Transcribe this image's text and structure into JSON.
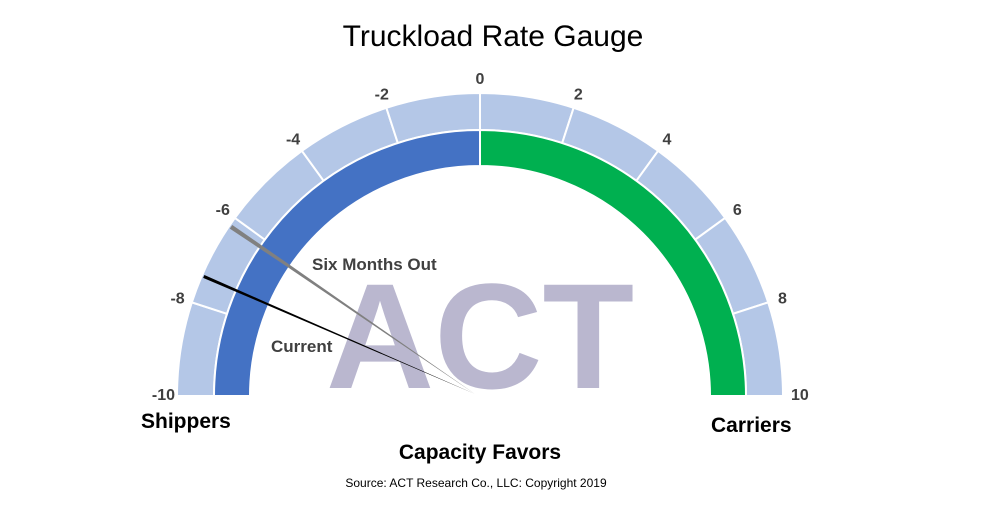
{
  "chart_data": {
    "type": "gauge",
    "title": "Truckload Rate Gauge",
    "range": [
      -10,
      10
    ],
    "ticks": [
      -10,
      -8,
      -6,
      -4,
      -2,
      0,
      2,
      4,
      6,
      8,
      10
    ],
    "tick_labels": [
      "-10",
      "-8",
      "-6",
      "-4",
      "-2",
      "0",
      "2",
      "4",
      "6",
      "8",
      "10"
    ],
    "left_label": "Shippers",
    "right_label": "Carriers",
    "axis_label": "Capacity Favors",
    "inner_band": [
      {
        "from": -10,
        "to": 0,
        "color": "#4472c4"
      },
      {
        "from": 0,
        "to": 10,
        "color": "#00b050"
      }
    ],
    "outer_band_color": "#b4c7e7",
    "needles": [
      {
        "name": "Six Months Out",
        "value": -6.2,
        "color": "#808080"
      },
      {
        "name": "Current",
        "value": -7.4,
        "color": "#000000"
      }
    ],
    "watermark": "ACT",
    "source": "Source: ACT Research Co., LLC: Copyright 2019"
  }
}
